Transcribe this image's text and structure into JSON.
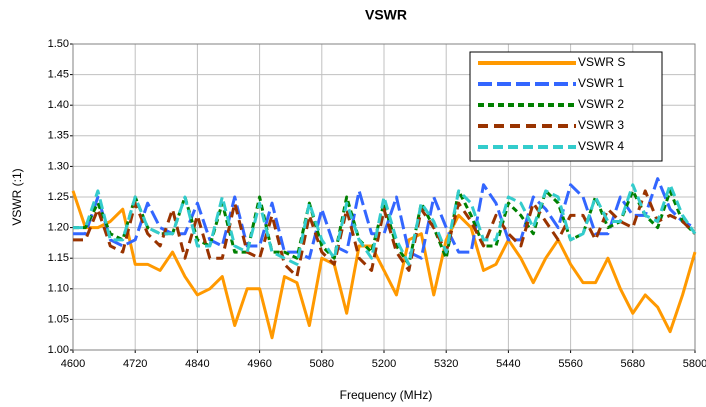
{
  "chart_data": {
    "type": "line",
    "title": "VSWR",
    "x_label": "Frequency (MHz)",
    "y_label": "VSWR (:1)",
    "x": [
      4600,
      4624,
      4648,
      4672,
      4696,
      4720,
      4744,
      4768,
      4792,
      4816,
      4840,
      4864,
      4888,
      4912,
      4936,
      4960,
      4984,
      5008,
      5032,
      5056,
      5080,
      5104,
      5128,
      5152,
      5176,
      5200,
      5224,
      5248,
      5272,
      5296,
      5320,
      5344,
      5368,
      5392,
      5416,
      5440,
      5464,
      5488,
      5512,
      5536,
      5560,
      5584,
      5608,
      5632,
      5656,
      5680,
      5704,
      5728,
      5752,
      5776,
      5800
    ],
    "xlim": [
      4600,
      5800
    ],
    "xticks": [
      4600,
      4720,
      4840,
      4960,
      5080,
      5200,
      5320,
      5440,
      5560,
      5680,
      5800
    ],
    "ylim": [
      1.0,
      1.5
    ],
    "yticks": [
      {
        "value": 1.0,
        "label": "1.00"
      },
      {
        "value": 1.05,
        "label": "1.05"
      },
      {
        "value": 1.1,
        "label": "1.10"
      },
      {
        "value": 1.15,
        "label": "1.15"
      },
      {
        "value": 1.2,
        "label": "1.20"
      },
      {
        "value": 1.25,
        "label": "1.25"
      },
      {
        "value": 1.3,
        "label": "1.30"
      },
      {
        "value": 1.35,
        "label": "1.35"
      },
      {
        "value": 1.4,
        "label": "1.40"
      },
      {
        "value": 1.45,
        "label": "1.45"
      },
      {
        "value": 1.5,
        "label": "1.50"
      }
    ],
    "grid": true,
    "legend": "top-right",
    "series": [
      {
        "name": "VSWR S",
        "color": "#ff9900",
        "values": [
          1.26,
          1.2,
          1.2,
          1.21,
          1.23,
          1.14,
          1.14,
          1.13,
          1.16,
          1.12,
          1.09,
          1.1,
          1.12,
          1.04,
          1.1,
          1.1,
          1.02,
          1.12,
          1.11,
          1.04,
          1.15,
          1.14,
          1.06,
          1.17,
          1.17,
          1.13,
          1.09,
          1.18,
          1.19,
          1.09,
          1.18,
          1.22,
          1.2,
          1.13,
          1.14,
          1.18,
          1.15,
          1.11,
          1.15,
          1.18,
          1.14,
          1.11,
          1.11,
          1.15,
          1.1,
          1.06,
          1.09,
          1.07,
          1.03,
          1.09,
          1.16
        ]
      },
      {
        "name": "VSWR 1",
        "color": "#3366ff",
        "values": [
          1.19,
          1.19,
          1.25,
          1.18,
          1.17,
          1.18,
          1.24,
          1.2,
          1.19,
          1.19,
          1.24,
          1.18,
          1.17,
          1.25,
          1.17,
          1.17,
          1.24,
          1.16,
          1.16,
          1.15,
          1.23,
          1.17,
          1.16,
          1.26,
          1.19,
          1.19,
          1.25,
          1.16,
          1.15,
          1.25,
          1.2,
          1.16,
          1.16,
          1.27,
          1.24,
          1.18,
          1.18,
          1.25,
          1.23,
          1.2,
          1.27,
          1.25,
          1.19,
          1.19,
          1.25,
          1.22,
          1.22,
          1.28,
          1.23,
          1.21,
          1.2
        ]
      },
      {
        "name": "VSWR 2",
        "color": "#008000",
        "values": [
          1.2,
          1.2,
          1.24,
          1.19,
          1.18,
          1.25,
          1.2,
          1.19,
          1.19,
          1.25,
          1.18,
          1.17,
          1.24,
          1.16,
          1.16,
          1.25,
          1.16,
          1.16,
          1.15,
          1.24,
          1.17,
          1.15,
          1.25,
          1.18,
          1.16,
          1.24,
          1.17,
          1.14,
          1.24,
          1.2,
          1.15,
          1.26,
          1.22,
          1.17,
          1.17,
          1.24,
          1.22,
          1.19,
          1.26,
          1.24,
          1.18,
          1.19,
          1.25,
          1.2,
          1.21,
          1.26,
          1.22,
          1.2,
          1.26,
          1.21,
          1.19
        ]
      },
      {
        "name": "VSWR 3",
        "color": "#993300",
        "values": [
          1.18,
          1.18,
          1.23,
          1.17,
          1.16,
          1.24,
          1.19,
          1.17,
          1.23,
          1.15,
          1.22,
          1.15,
          1.15,
          1.24,
          1.16,
          1.15,
          1.22,
          1.14,
          1.12,
          1.22,
          1.16,
          1.14,
          1.23,
          1.15,
          1.13,
          1.23,
          1.16,
          1.13,
          1.23,
          1.2,
          1.16,
          1.24,
          1.21,
          1.17,
          1.22,
          1.19,
          1.17,
          1.24,
          1.21,
          1.18,
          1.22,
          1.22,
          1.18,
          1.23,
          1.21,
          1.2,
          1.26,
          1.21,
          1.22,
          1.21,
          1.19
        ]
      },
      {
        "name": "VSWR 4",
        "color": "#33cccc",
        "values": [
          1.2,
          1.2,
          1.26,
          1.18,
          1.18,
          1.25,
          1.2,
          1.19,
          1.19,
          1.25,
          1.17,
          1.17,
          1.25,
          1.17,
          1.16,
          1.24,
          1.16,
          1.15,
          1.14,
          1.24,
          1.18,
          1.15,
          1.24,
          1.18,
          1.15,
          1.25,
          1.18,
          1.14,
          1.24,
          1.21,
          1.16,
          1.26,
          1.24,
          1.18,
          1.18,
          1.25,
          1.24,
          1.2,
          1.26,
          1.25,
          1.18,
          1.19,
          1.25,
          1.21,
          1.21,
          1.27,
          1.22,
          1.21,
          1.27,
          1.22,
          1.19
        ]
      }
    ]
  }
}
